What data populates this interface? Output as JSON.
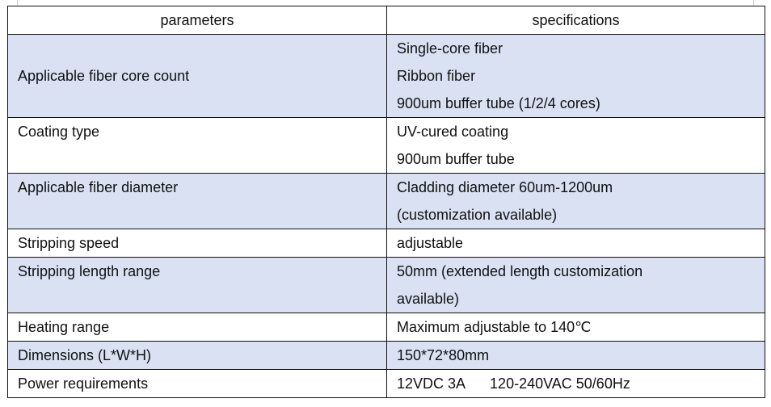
{
  "table": {
    "headers": [
      "parameters",
      "specifications"
    ],
    "rows": [
      {
        "parameter": "Applicable fiber core count",
        "spec": [
          "Single-core fiber",
          "Ribbon fiber",
          "900um buffer tube (1/2/4 cores)"
        ],
        "shaded": true
      },
      {
        "parameter": "Coating type",
        "spec": [
          "UV-cured coating",
          "900um buffer tube"
        ],
        "shaded": false
      },
      {
        "parameter": "Applicable fiber diameter",
        "spec": [
          "Cladding diameter 60um-1200um",
          "(customization available)"
        ],
        "shaded": true
      },
      {
        "parameter": "Stripping speed",
        "spec": [
          "adjustable"
        ],
        "shaded": false
      },
      {
        "parameter": "Stripping length range",
        "spec": [
          "50mm (extended length customization",
          "available)"
        ],
        "shaded": true
      },
      {
        "parameter": "Heating range",
        "spec": [
          "Maximum adjustable to 140℃"
        ],
        "shaded": false
      },
      {
        "parameter": "Dimensions (L*W*H)",
        "spec": [
          "150*72*80mm"
        ],
        "shaded": true
      },
      {
        "parameter": "Power requirements",
        "spec": [
          "12VDC 3A      120-240VAC 50/60Hz"
        ],
        "shaded": false
      }
    ],
    "shade_color": "#dae1f3"
  }
}
